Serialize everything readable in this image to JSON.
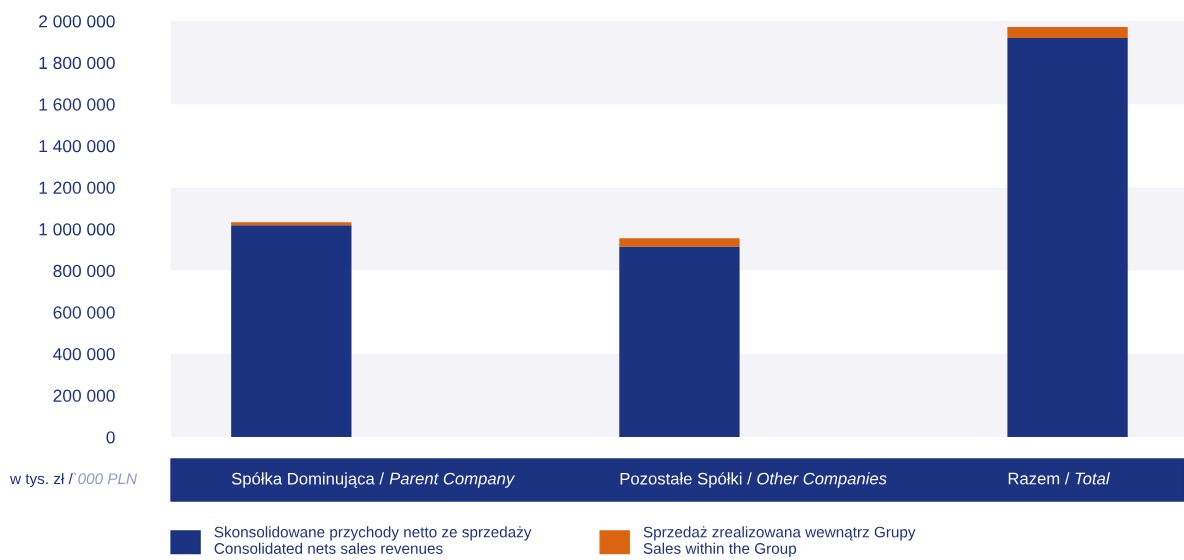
{
  "chart_data": {
    "type": "bar",
    "stacked": true,
    "categories": [
      "Spółka Dominująca / Parent Company",
      "Pozostałe Spółki / Other Companies",
      "Razem / Total"
    ],
    "series": [
      {
        "name": "Skonsolidowane przychody netto ze sprzedaży\nConsolidated nets sales revenues",
        "color": "#1b3380",
        "values": [
          1018000,
          916000,
          1918000
        ]
      },
      {
        "name": "Sprzedaż zrealizowana wewnątrz Grupy\nSales within the Group",
        "color": "#db6410",
        "values": [
          15000,
          39000,
          53000
        ]
      }
    ],
    "ylabel": "w tys. zł /`000 PLN",
    "ylim": [
      0,
      2000000
    ],
    "yticks": [
      {
        "value": 0,
        "label": "0"
      },
      {
        "value": 200000,
        "label": "200 000"
      },
      {
        "value": 400000,
        "label": "400 000"
      },
      {
        "value": 600000,
        "label": "600 000"
      },
      {
        "value": 800000,
        "label": "800 000"
      },
      {
        "value": 1000000,
        "label": "1 000 000"
      },
      {
        "value": 1200000,
        "label": "1 200 000"
      },
      {
        "value": 1400000,
        "label": "1 400 000"
      },
      {
        "value": 1600000,
        "label": "1 600 000"
      },
      {
        "value": 1800000,
        "label": "1 800 000"
      },
      {
        "value": 2000000,
        "label": "2 000 000"
      }
    ],
    "bands": [
      {
        "axis": "y",
        "from": 0,
        "to": 400000,
        "color": "#f4f3f8"
      },
      {
        "axis": "y",
        "from": 800000,
        "to": 1200000,
        "color": "#f4f3f8"
      },
      {
        "axis": "y",
        "from": 1600000,
        "to": 2000000,
        "color": "#f4f3f8"
      }
    ],
    "grid": false,
    "legend": "bottom"
  }
}
